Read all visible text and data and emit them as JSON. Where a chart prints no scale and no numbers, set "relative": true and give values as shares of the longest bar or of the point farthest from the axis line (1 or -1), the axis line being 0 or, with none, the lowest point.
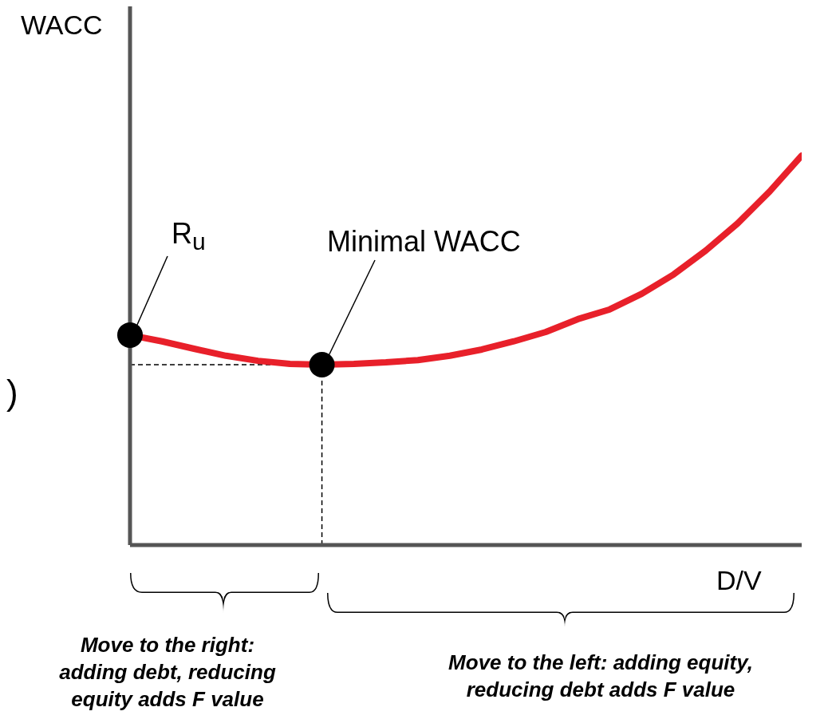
{
  "chart_data": {
    "type": "line",
    "relative": true,
    "xlabel": "D/V",
    "ylabel": "WACC",
    "categories": [
      null,
      null,
      null,
      null,
      null,
      null,
      null,
      null,
      null,
      null,
      null,
      null,
      null,
      null,
      null,
      null,
      null,
      null,
      null,
      null,
      null,
      null
    ],
    "series": [
      {
        "color": "#e8202a",
        "values": [
          0.539,
          0.523,
          0.504,
          0.486,
          0.473,
          0.465,
          0.463,
          0.465,
          0.469,
          0.475,
          0.486,
          0.502,
          0.523,
          0.547,
          0.58,
          0.605,
          0.645,
          0.695,
          0.756,
          0.826,
          0.908,
          1
        ]
      }
    ],
    "marker": "none",
    "ref_lines": [
      {
        "axis": "y",
        "value": 0.463,
        "line_style": "dashed",
        "color": "#000000"
      }
    ],
    "annotations": [
      "R$_{u}$",
      "Minimal WACC",
      "Move to the right: adding debt, reducing equity adds F value",
      "Move to the left: adding equity, reducing debt adds F value",
      ")"
    ]
  }
}
